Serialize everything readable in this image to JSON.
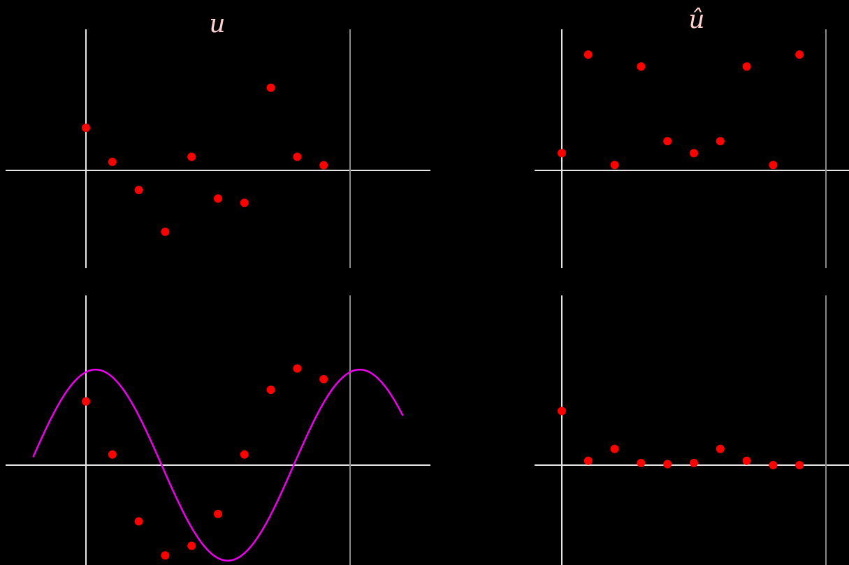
{
  "chart_data": [
    {
      "type": "scatter",
      "title": "u",
      "x": [
        0,
        1,
        2,
        3,
        4,
        5,
        6,
        7,
        8,
        9
      ],
      "y": [
        0.5,
        0.1,
        -0.23,
        -0.72,
        0.16,
        -0.33,
        -0.38,
        0.97,
        0.16,
        0.06
      ],
      "xlim": [
        -3,
        13
      ],
      "ylim": [
        -0.9,
        1.3
      ],
      "color": "#ff0000"
    },
    {
      "type": "scatter",
      "title": "û",
      "x": [
        0,
        1,
        2,
        3,
        4,
        5,
        6,
        7,
        8,
        9
      ],
      "y": [
        0.16,
        1.07,
        0.05,
        0.96,
        0.27,
        0.16,
        0.27,
        0.96,
        0.05,
        1.07
      ],
      "xlim": [
        -1,
        11
      ],
      "ylim": [
        -0.9,
        1.3
      ],
      "color": "#ff0000"
    },
    {
      "type": "line",
      "title": "",
      "x": [
        0,
        1,
        2,
        3,
        4,
        5,
        6,
        7,
        8,
        9
      ],
      "y": [
        0.6,
        0.1,
        -0.53,
        -0.85,
        -0.76,
        -0.46,
        0.1,
        0.71,
        0.91,
        0.81
      ],
      "curve": {
        "amplitude": 0.9,
        "period": 10,
        "phase": -0.23,
        "x_range": [
          -2,
          12
        ]
      },
      "xlim": [
        -3,
        13
      ],
      "ylim": [
        -0.9,
        1.3
      ],
      "color": "#ff0000",
      "curve_color": "#ee00ee"
    },
    {
      "type": "scatter",
      "title": "",
      "x": [
        0,
        1,
        2,
        3,
        4,
        5,
        6,
        7,
        8,
        9
      ],
      "y": [
        0.5,
        0.04,
        0.15,
        0.02,
        0.01,
        0.02,
        0.15,
        0.04,
        0,
        0
      ],
      "xlim": [
        -1,
        11
      ],
      "ylim": [
        -0.9,
        1.3
      ],
      "color": "#ff0000"
    }
  ]
}
